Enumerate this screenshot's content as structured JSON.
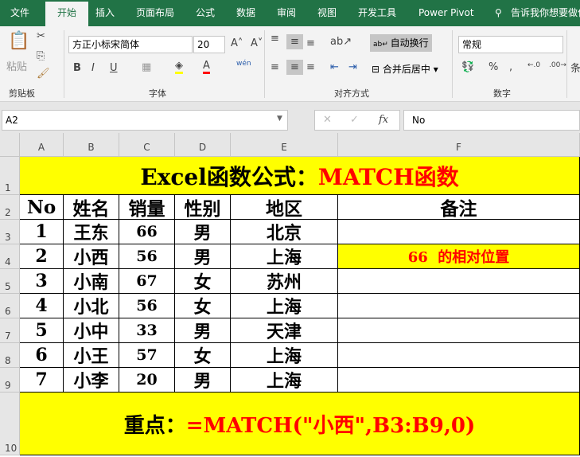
{
  "tabs": [
    "文件",
    "开始",
    "插入",
    "页面布局",
    "公式",
    "数据",
    "审阅",
    "视图",
    "开发工具",
    "Power Pivot"
  ],
  "tell_me": "告诉我你想要做什么",
  "ribbon": {
    "clipboard": {
      "paste": "粘贴",
      "label": "剪贴板"
    },
    "font": {
      "name": "方正小标宋简体",
      "size": "20",
      "label": "字体",
      "bold": "B",
      "italic": "I",
      "underline": "U",
      "phonetic": "wén"
    },
    "alignment": {
      "wrap": "自动换行",
      "merge": "合并后居中",
      "label": "对齐方式"
    },
    "number": {
      "format": "常规",
      "percent": "%",
      "comma": ",",
      "label": "数字"
    },
    "styles_partial": "条"
  },
  "formula_bar": {
    "name_box": "A2",
    "fx": "fx",
    "value": "No"
  },
  "columns": [
    "A",
    "B",
    "C",
    "D",
    "E",
    "F"
  ],
  "rows": [
    "1",
    "2",
    "3",
    "4",
    "5",
    "6",
    "7",
    "8",
    "9",
    "10"
  ],
  "sheet": {
    "title_black": "Excel函数公式：",
    "title_red": "MATCH函数",
    "headers": [
      "No",
      "姓名",
      "销量",
      "性别",
      "地区",
      "备注"
    ],
    "data": [
      [
        "1",
        "王东",
        "66",
        "男",
        "北京"
      ],
      [
        "2",
        "小西",
        "56",
        "男",
        "上海"
      ],
      [
        "3",
        "小南",
        "67",
        "女",
        "苏州"
      ],
      [
        "4",
        "小北",
        "56",
        "女",
        "上海"
      ],
      [
        "5",
        "小中",
        "33",
        "男",
        "天津"
      ],
      [
        "6",
        "小王",
        "57",
        "女",
        "上海"
      ],
      [
        "7",
        "小李",
        "20",
        "男",
        "上海"
      ]
    ],
    "note": "66  的相对位置",
    "key_black": "重点：",
    "key_red": "=MATCH(\"小西\",B3:B9,0)"
  },
  "colors": {
    "excel_green": "#217346",
    "highlight": "#ffff00",
    "accent_red": "#ff0000"
  }
}
